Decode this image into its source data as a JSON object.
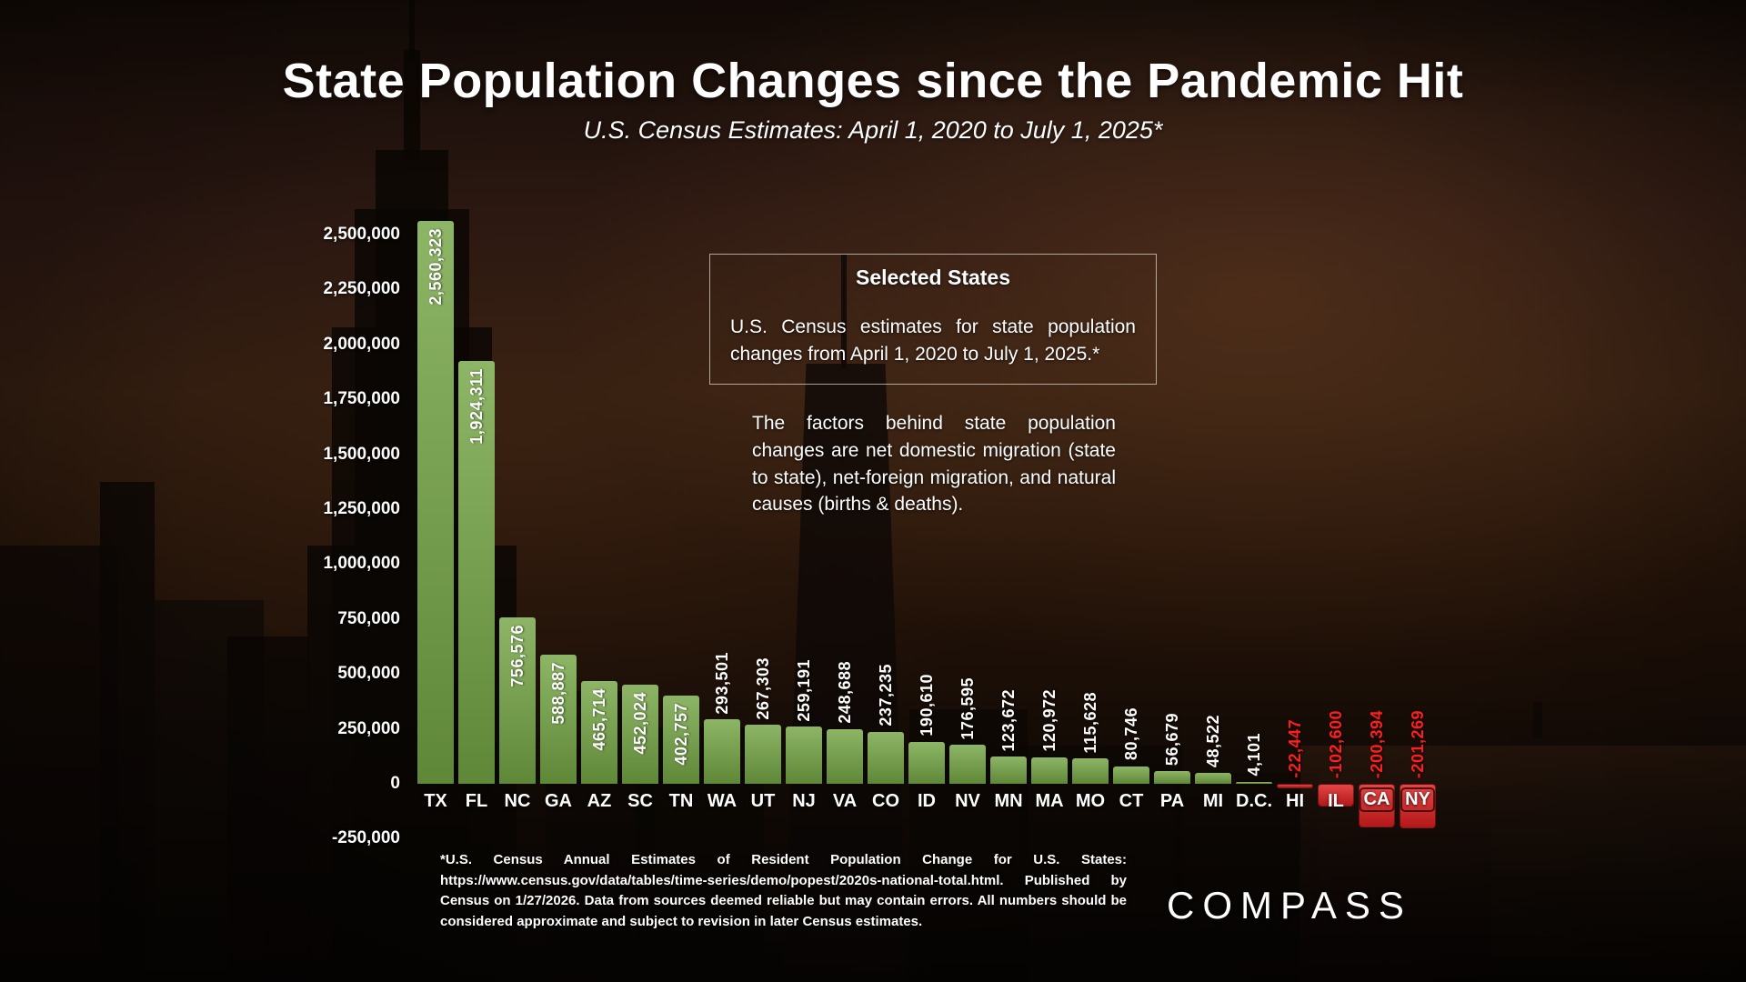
{
  "page": {
    "title": "State Population Changes since the Pandemic Hit",
    "subtitle": "U.S. Census Estimates: April 1, 2020 to July 1, 2025*"
  },
  "info_box": {
    "heading": "Selected States",
    "body": "U.S. Census estimates for state population changes from April 1, 2020 to July 1, 2025.*"
  },
  "note": "The factors behind state population changes are net domestic migration (state to state), net-foreign migration, and natural causes (births & deaths).",
  "footnote": "*U.S. Census Annual Estimates of Resident Population Change for U.S. States: https://www.census.gov/data/tables/time-series/demo/popest/2020s-national-total.html. Published by Census on 1/27/2026. Data from sources deemed reliable but may contain errors. All numbers should be considered approximate and subject to revision in later Census estimates.",
  "logo_text": "COMPASS",
  "chart_data": {
    "type": "bar",
    "title": "State Population Changes since the Pandemic Hit",
    "subtitle": "U.S. Census Estimates: April 1, 2020 to July 1, 2025*",
    "categories": [
      "TX",
      "FL",
      "NC",
      "GA",
      "AZ",
      "SC",
      "TN",
      "WA",
      "UT",
      "NJ",
      "VA",
      "CO",
      "ID",
      "NV",
      "MN",
      "MA",
      "MO",
      "CT",
      "PA",
      "MI",
      "D.C.",
      "HI",
      "IL",
      "CA",
      "NY"
    ],
    "values": [
      2560323,
      1924311,
      756576,
      588887,
      465714,
      452024,
      402757,
      293501,
      267303,
      259191,
      248688,
      237235,
      190610,
      176595,
      123672,
      120972,
      115628,
      80746,
      56679,
      48522,
      4101,
      -22447,
      -102600,
      -200394,
      -201269
    ],
    "value_labels": [
      "2,560,323",
      "1,924,311",
      "756,576",
      "588,887",
      "465,714",
      "452,024",
      "402,757",
      "293,501",
      "267,303",
      "259,191",
      "248,688",
      "237,235",
      "190,610",
      "176,595",
      "123,672",
      "120,972",
      "115,628",
      "80,746",
      "56,679",
      "48,522",
      "4,101",
      "-22,447",
      "-102,600",
      "-200,394",
      "-201,269"
    ],
    "ylim": [
      -250000,
      2500000
    ],
    "yticks": [
      {
        "value": 2500000,
        "label": "2,500,000"
      },
      {
        "value": 2250000,
        "label": "2,250,000"
      },
      {
        "value": 2000000,
        "label": "2,000,000"
      },
      {
        "value": 1750000,
        "label": "1,750,000"
      },
      {
        "value": 1500000,
        "label": "1,500,000"
      },
      {
        "value": 1250000,
        "label": "1,250,000"
      },
      {
        "value": 1000000,
        "label": "1,000,000"
      },
      {
        "value": 750000,
        "label": "750,000"
      },
      {
        "value": 500000,
        "label": "500,000"
      },
      {
        "value": 250000,
        "label": "250,000"
      },
      {
        "value": 0,
        "label": "0"
      },
      {
        "value": -250000,
        "label": "-250,000"
      }
    ],
    "grid": false,
    "legend": false,
    "colors": {
      "positive_bar": "#74a544",
      "negative_bar": "#dd1d1d",
      "positive_label": "#ffffff",
      "negative_label": "#ff1e1e",
      "axis_text": "#ffffff"
    }
  }
}
